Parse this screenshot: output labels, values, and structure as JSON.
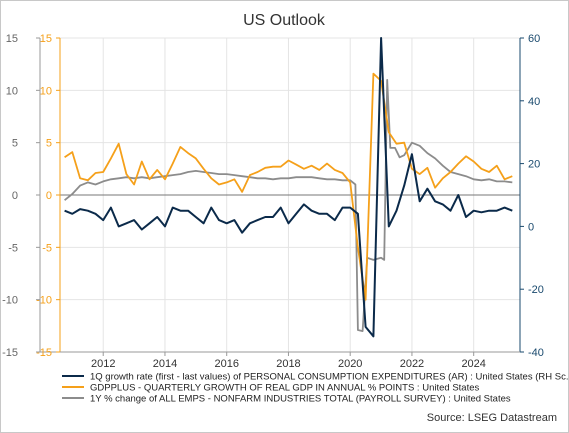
{
  "chart_data": {
    "type": "line",
    "title": "US Outlook",
    "source": "Source: LSEG Datastream",
    "colors": {
      "s1": "#0b2a4a",
      "s2": "#f5a01a",
      "s3": "#8c8c8c",
      "right_axis": "#1a4a6e",
      "left_outer": "#666666"
    },
    "x_ticks": [
      2012,
      2014,
      2016,
      2018,
      2020,
      2022,
      2024
    ],
    "xlim": [
      2010.6,
      2025.5
    ],
    "left_axis": {
      "ylim": [
        -15,
        15
      ],
      "ticks": [
        -15,
        -10,
        -5,
        0,
        5,
        10,
        15
      ]
    },
    "right_axis": {
      "ylim": [
        -40,
        60
      ],
      "ticks": [
        -40,
        -20,
        0,
        20,
        40,
        60
      ]
    },
    "legend": [
      "1Q growth rate (first - last values) of PERSONAL CONSUMPTION EXPENDITURES (AR) : United States (RH Sc...",
      "GDPPLUS - QUARTERLY GROWTH OF REAL GDP IN ANNUAL % POINTS : United States",
      "1Y % change of ALL EMPS - NONFARM INDUSTRIES TOTAL (PAYROLL SURVEY) : United States"
    ],
    "series": [
      {
        "axis": "right",
        "x": [
          2010.75,
          2011.0,
          2011.25,
          2011.5,
          2011.75,
          2012.0,
          2012.25,
          2012.5,
          2012.75,
          2013.0,
          2013.25,
          2013.5,
          2013.75,
          2014.0,
          2014.25,
          2014.5,
          2014.75,
          2015.0,
          2015.25,
          2015.5,
          2015.75,
          2016.0,
          2016.25,
          2016.5,
          2016.75,
          2017.0,
          2017.25,
          2017.5,
          2017.75,
          2018.0,
          2018.25,
          2018.5,
          2018.75,
          2019.0,
          2019.25,
          2019.5,
          2019.75,
          2020.0,
          2020.25,
          2020.5,
          2020.75,
          2021.0,
          2021.25,
          2021.5,
          2021.75,
          2022.0,
          2022.25,
          2022.5,
          2022.75,
          2023.0,
          2023.25,
          2023.5,
          2023.75,
          2024.0,
          2024.25,
          2024.5,
          2024.75,
          2025.0,
          2025.25
        ],
        "values": [
          5,
          4,
          5.5,
          5,
          4,
          2,
          6,
          0,
          1,
          2,
          -1,
          1,
          3,
          0,
          6,
          5,
          5,
          3,
          1,
          6,
          2,
          1,
          2,
          -2,
          1,
          2,
          3,
          3,
          6,
          1,
          4,
          7,
          5,
          4,
          4,
          2,
          6,
          6,
          4,
          -32,
          -35,
          60,
          0,
          5,
          13,
          23,
          8,
          12,
          8,
          7,
          5,
          10,
          3,
          5,
          4.5,
          5,
          5,
          6,
          5
        ]
      },
      {
        "axis": "left",
        "x": [
          2010.75,
          2011.0,
          2011.25,
          2011.5,
          2011.75,
          2012.0,
          2012.25,
          2012.5,
          2012.75,
          2013.0,
          2013.25,
          2013.5,
          2013.75,
          2014.0,
          2014.25,
          2014.5,
          2014.75,
          2015.0,
          2015.25,
          2015.5,
          2015.75,
          2016.0,
          2016.25,
          2016.5,
          2016.75,
          2017.0,
          2017.25,
          2017.5,
          2017.75,
          2018.0,
          2018.25,
          2018.5,
          2018.75,
          2019.0,
          2019.25,
          2019.5,
          2019.75,
          2020.0,
          2020.25,
          2020.5,
          2020.75,
          2021.0,
          2021.25,
          2021.5,
          2021.75,
          2022.0,
          2022.25,
          2022.5,
          2022.75,
          2023.0,
          2023.25,
          2023.5,
          2023.75,
          2024.0,
          2024.25,
          2024.5,
          2024.75,
          2025.0,
          2025.25
        ],
        "values": [
          3.6,
          4.1,
          1.6,
          1.4,
          2.1,
          2.2,
          3.5,
          4.9,
          2.0,
          1.0,
          3.2,
          1.5,
          2.4,
          1.5,
          3.0,
          4.6,
          4.0,
          3.5,
          2.5,
          1.6,
          1.0,
          1.2,
          1.5,
          0.3,
          1.9,
          2.2,
          2.6,
          2.7,
          2.7,
          3.3,
          2.9,
          2.5,
          2.8,
          2.4,
          3.0,
          2.4,
          2.1,
          1.2,
          -5.0,
          -10.0,
          11.6,
          10.9,
          6.0,
          4.9,
          5.0,
          2.5,
          2.0,
          2.6,
          0.7,
          1.6,
          2.2,
          3.0,
          3.7,
          3.2,
          2.5,
          2.2,
          2.8,
          1.5,
          1.8
        ]
      },
      {
        "axis": "left",
        "x": [
          2010.75,
          2011.0,
          2011.25,
          2011.5,
          2011.75,
          2012.0,
          2012.25,
          2012.5,
          2012.75,
          2013.0,
          2013.25,
          2013.5,
          2013.75,
          2014.0,
          2014.25,
          2014.5,
          2014.75,
          2015.0,
          2015.25,
          2015.5,
          2015.75,
          2016.0,
          2016.25,
          2016.5,
          2016.75,
          2017.0,
          2017.25,
          2017.5,
          2017.75,
          2018.0,
          2018.25,
          2018.5,
          2018.75,
          2019.0,
          2019.25,
          2019.5,
          2019.75,
          2020.0,
          2020.17,
          2020.25,
          2020.4,
          2020.55,
          2020.75,
          2021.0,
          2021.1,
          2021.2,
          2021.3,
          2021.45,
          2021.6,
          2021.75,
          2022.0,
          2022.25,
          2022.5,
          2022.75,
          2023.0,
          2023.25,
          2023.5,
          2023.75,
          2024.0,
          2024.25,
          2024.5,
          2024.75,
          2025.0,
          2025.25
        ],
        "values": [
          -0.5,
          0.1,
          0.9,
          1.2,
          1.0,
          1.3,
          1.5,
          1.6,
          1.7,
          1.6,
          1.7,
          1.6,
          1.7,
          1.8,
          1.9,
          2.0,
          2.2,
          2.3,
          2.2,
          2.1,
          2.0,
          2.0,
          1.9,
          1.8,
          1.7,
          1.6,
          1.6,
          1.5,
          1.6,
          1.6,
          1.7,
          1.7,
          1.7,
          1.6,
          1.5,
          1.5,
          1.4,
          1.4,
          1.0,
          -12.9,
          -13.0,
          -6.0,
          -6.2,
          -6.0,
          -6.2,
          11.0,
          4.5,
          4.5,
          3.6,
          3.8,
          5.0,
          4.7,
          4.0,
          3.5,
          2.8,
          2.2,
          2.0,
          1.8,
          1.5,
          1.4,
          1.5,
          1.3,
          1.3,
          1.2
        ]
      }
    ]
  }
}
